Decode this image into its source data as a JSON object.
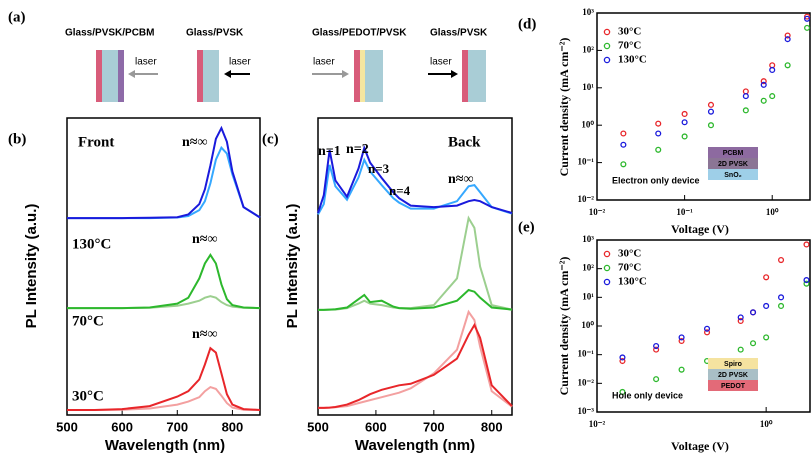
{
  "panel_a": {
    "label": "(a)",
    "samples": [
      {
        "name": "Glass/PVSK/PCBM",
        "laser": "laser"
      },
      {
        "name": "Glass/PVSK",
        "laser": "laser"
      },
      {
        "name": "Glass/PEDOT/PVSK",
        "laser": "laser"
      },
      {
        "name": "Glass/PVSK",
        "laser": "laser"
      }
    ]
  },
  "chart_data": [
    {
      "type": "line",
      "panel_label": "(b)",
      "x_label": "Wavelength (nm)",
      "y_label": "PL Intensity (a.u.)",
      "xlim": [
        500,
        850
      ],
      "ylim": [
        0,
        10
      ],
      "xticks": [
        500,
        600,
        700,
        800
      ],
      "annotations": [
        "Front",
        "n≈∞",
        "130°C",
        "n≈∞",
        "70°C",
        "n≈∞",
        "30°C"
      ],
      "x": [
        500,
        550,
        600,
        650,
        700,
        720,
        740,
        750,
        760,
        770,
        780,
        790,
        800,
        820,
        850
      ],
      "series": [
        {
          "color": "#35a8ff",
          "values": [
            6.63,
            6.63,
            6.63,
            6.63,
            6.65,
            6.7,
            6.9,
            7.2,
            7.8,
            8.6,
            9.0,
            8.8,
            8.1,
            7.0,
            6.65
          ]
        },
        {
          "color": "#1a1adc",
          "values": [
            6.63,
            6.63,
            6.63,
            6.64,
            6.66,
            6.75,
            7.1,
            7.6,
            8.4,
            9.3,
            9.66,
            9.2,
            8.2,
            7.0,
            6.65
          ]
        },
        {
          "color": "#9ccf8f",
          "values": [
            3.6,
            3.6,
            3.6,
            3.61,
            3.68,
            3.75,
            3.85,
            3.95,
            4.0,
            3.95,
            3.8,
            3.7,
            3.65,
            3.61,
            3.6
          ]
        },
        {
          "color": "#2db82d",
          "values": [
            3.6,
            3.6,
            3.6,
            3.62,
            3.75,
            3.95,
            4.6,
            5.1,
            5.39,
            5.1,
            4.4,
            3.9,
            3.7,
            3.62,
            3.6
          ]
        },
        {
          "color": "#f3a0a0",
          "values": [
            0.17,
            0.17,
            0.18,
            0.22,
            0.35,
            0.45,
            0.6,
            0.8,
            0.94,
            0.88,
            0.65,
            0.4,
            0.25,
            0.18,
            0.17
          ]
        },
        {
          "color": "#e8262a",
          "values": [
            0.17,
            0.17,
            0.2,
            0.3,
            0.62,
            0.8,
            1.2,
            1.7,
            2.25,
            2.1,
            1.4,
            0.7,
            0.35,
            0.2,
            0.17
          ]
        }
      ]
    },
    {
      "type": "line",
      "panel_label": "(c)",
      "x_label": "Wavelength (nm)",
      "y_label": "PL Intensity (a.u.)",
      "xlim": [
        500,
        835
      ],
      "ylim": [
        0,
        10
      ],
      "xticks": [
        500,
        600,
        700,
        800
      ],
      "annotations": [
        "n=1",
        "n=2",
        "n=3",
        "n=4",
        "Back",
        "n≈∞"
      ],
      "x": [
        500,
        510,
        520,
        530,
        550,
        570,
        580,
        590,
        610,
        630,
        640,
        660,
        700,
        740,
        760,
        770,
        780,
        800,
        835
      ],
      "series": [
        {
          "color": "#35a8ff",
          "values": [
            6.75,
            7.1,
            8.42,
            7.7,
            7.25,
            8.0,
            8.59,
            8.2,
            7.74,
            7.3,
            7.15,
            6.95,
            6.95,
            7.2,
            7.7,
            7.74,
            7.5,
            7.0,
            6.78
          ]
        },
        {
          "color": "#1a1adc",
          "values": [
            6.8,
            7.4,
            8.92,
            7.9,
            7.35,
            8.3,
            8.99,
            8.5,
            7.98,
            7.5,
            7.3,
            7.05,
            7.0,
            7.05,
            7.2,
            7.24,
            7.2,
            7.0,
            6.8
          ]
        },
        {
          "color": "#9ccf8f",
          "values": [
            3.54,
            3.54,
            3.55,
            3.55,
            3.6,
            3.75,
            3.85,
            3.75,
            3.7,
            3.62,
            3.6,
            3.6,
            3.7,
            4.6,
            6.63,
            6.3,
            5.0,
            3.7,
            3.55
          ]
        },
        {
          "color": "#2db82d",
          "values": [
            3.54,
            3.54,
            3.55,
            3.56,
            3.62,
            3.9,
            4.04,
            3.8,
            3.85,
            3.65,
            3.6,
            3.58,
            3.62,
            3.85,
            4.21,
            4.15,
            3.95,
            3.62,
            3.55
          ]
        },
        {
          "color": "#f3a0a0",
          "values": [
            0.24,
            0.24,
            0.25,
            0.26,
            0.3,
            0.4,
            0.45,
            0.5,
            0.6,
            0.7,
            0.75,
            0.9,
            1.4,
            2.2,
            3.47,
            3.2,
            2.3,
            0.8,
            0.28
          ]
        },
        {
          "color": "#e8262a",
          "values": [
            0.24,
            0.24,
            0.25,
            0.27,
            0.35,
            0.5,
            0.6,
            0.7,
            0.85,
            0.95,
            1.0,
            1.05,
            1.35,
            1.9,
            2.7,
            3.03,
            2.6,
            1.0,
            0.3
          ]
        }
      ]
    },
    {
      "type": "scatter",
      "panel_label": "(d)",
      "x_label": "Voltage (V)",
      "y_label": "Current density (mA cm⁻²)",
      "log_x": true,
      "log_y": true,
      "xlim": [
        0.01,
        2.7
      ],
      "ylim": [
        0.01,
        1000
      ],
      "xticks": [
        {
          "value": 0.01,
          "label": "10⁻²"
        },
        {
          "value": 0.1,
          "label": "10⁻¹"
        },
        {
          "value": 1,
          "label": "10⁰"
        }
      ],
      "yticks": [
        {
          "value": 0.01,
          "label": "10⁻²"
        },
        {
          "value": 0.1,
          "label": "10⁻¹"
        },
        {
          "value": 1,
          "label": "10⁰"
        },
        {
          "value": 10,
          "label": "10¹"
        },
        {
          "value": 100,
          "label": "10²"
        },
        {
          "value": 1000,
          "label": "10³"
        }
      ],
      "note": "Electron only device",
      "inset_layers": [
        "PCBM",
        "2D PVSK",
        "SnO₂"
      ],
      "x": [
        0.02,
        0.05,
        0.1,
        0.2,
        0.5,
        0.8,
        1,
        1.5,
        2.5
      ],
      "series": [
        {
          "name": "30°C",
          "color": "#e8262a",
          "values": [
            0.6,
            1.1,
            2,
            3.5,
            8,
            15,
            40,
            250,
            800
          ]
        },
        {
          "name": "70°C",
          "color": "#2db82d",
          "values": [
            0.09,
            0.22,
            0.5,
            1,
            2.5,
            4.5,
            6,
            40,
            400
          ]
        },
        {
          "name": "130°C",
          "color": "#1a1adc",
          "values": [
            0.3,
            0.6,
            1.2,
            2.3,
            6,
            12,
            30,
            200,
            700
          ]
        }
      ]
    },
    {
      "type": "scatter",
      "panel_label": "(e)",
      "x_label": "Voltage (V)",
      "y_label": "Current density (mA cm⁻²)",
      "log_x": true,
      "log_y": true,
      "xlim": [
        0.01,
        3.3
      ],
      "ylim": [
        0.001,
        1000
      ],
      "xticks": [
        {
          "value": 0.01,
          "label": "10⁻²"
        },
        {
          "value": 1,
          "label": "10⁰"
        }
      ],
      "yticks": [
        {
          "value": 0.001,
          "label": "10⁻³"
        },
        {
          "value": 0.01,
          "label": "10⁻²"
        },
        {
          "value": 0.1,
          "label": "10⁻¹"
        },
        {
          "value": 1,
          "label": "10⁰"
        },
        {
          "value": 10,
          "label": "10¹"
        },
        {
          "value": 100,
          "label": "10²"
        },
        {
          "value": 1000,
          "label": "10³"
        }
      ],
      "note": "Hole only device",
      "inset_layers": [
        "Spiro",
        "2D PVSK",
        "PEDOT"
      ],
      "x": [
        0.02,
        0.05,
        0.1,
        0.2,
        0.5,
        0.7,
        1,
        1.5,
        3
      ],
      "series": [
        {
          "name": "30°C",
          "color": "#e8262a",
          "values": [
            0.06,
            0.15,
            0.3,
            0.6,
            1.5,
            3,
            50,
            200,
            700
          ]
        },
        {
          "name": "70°C",
          "color": "#2db82d",
          "values": [
            0.005,
            0.014,
            0.03,
            0.06,
            0.15,
            0.25,
            0.4,
            5,
            30
          ]
        },
        {
          "name": "130°C",
          "color": "#1a1adc",
          "values": [
            0.08,
            0.2,
            0.4,
            0.8,
            2,
            3,
            5,
            10,
            40
          ]
        }
      ]
    }
  ]
}
